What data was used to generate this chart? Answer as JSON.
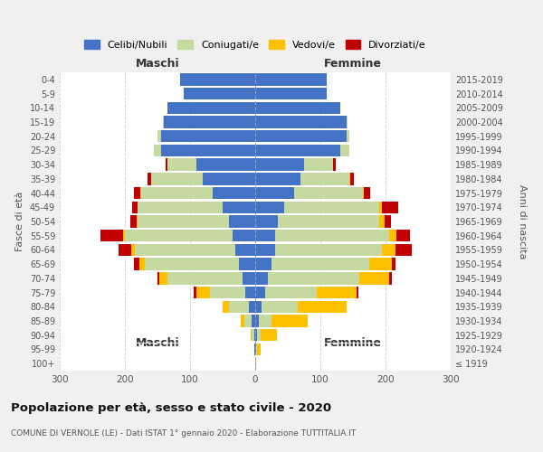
{
  "age_groups": [
    "100+",
    "95-99",
    "90-94",
    "85-89",
    "80-84",
    "75-79",
    "70-74",
    "65-69",
    "60-64",
    "55-59",
    "50-54",
    "45-49",
    "40-44",
    "35-39",
    "30-34",
    "25-29",
    "20-24",
    "15-19",
    "10-14",
    "5-9",
    "0-4"
  ],
  "birth_years": [
    "≤ 1919",
    "1920-1924",
    "1925-1929",
    "1930-1934",
    "1935-1939",
    "1940-1944",
    "1945-1949",
    "1950-1954",
    "1955-1959",
    "1960-1964",
    "1965-1969",
    "1970-1974",
    "1975-1979",
    "1980-1984",
    "1985-1989",
    "1990-1994",
    "1995-1999",
    "2000-2004",
    "2005-2009",
    "2010-2014",
    "2015-2019"
  ],
  "males": {
    "celibe": [
      0,
      1,
      2,
      5,
      10,
      15,
      20,
      25,
      30,
      35,
      40,
      50,
      65,
      80,
      90,
      145,
      145,
      140,
      135,
      110,
      115
    ],
    "coniugato": [
      0,
      1,
      3,
      12,
      30,
      55,
      115,
      145,
      155,
      165,
      140,
      130,
      110,
      80,
      45,
      10,
      5,
      2,
      0,
      0,
      0
    ],
    "vedovo": [
      0,
      0,
      2,
      5,
      10,
      20,
      12,
      8,
      5,
      3,
      2,
      1,
      1,
      0,
      0,
      0,
      0,
      0,
      0,
      0,
      0
    ],
    "divorziato": [
      0,
      0,
      0,
      0,
      0,
      5,
      3,
      8,
      20,
      35,
      10,
      8,
      10,
      5,
      2,
      1,
      0,
      0,
      0,
      0,
      0
    ]
  },
  "females": {
    "nubile": [
      0,
      1,
      3,
      5,
      10,
      15,
      20,
      25,
      30,
      30,
      35,
      45,
      60,
      70,
      75,
      130,
      140,
      140,
      130,
      110,
      110
    ],
    "coniugata": [
      0,
      2,
      5,
      20,
      55,
      80,
      140,
      150,
      165,
      175,
      155,
      145,
      105,
      75,
      45,
      15,
      5,
      2,
      0,
      0,
      0
    ],
    "vedova": [
      1,
      5,
      25,
      55,
      75,
      60,
      45,
      35,
      20,
      12,
      8,
      5,
      2,
      1,
      0,
      0,
      0,
      0,
      0,
      0,
      0
    ],
    "divorziata": [
      0,
      0,
      0,
      0,
      0,
      3,
      5,
      5,
      25,
      20,
      10,
      25,
      10,
      5,
      3,
      0,
      0,
      0,
      0,
      0,
      0
    ]
  },
  "colors": {
    "celibe": "#4472c4",
    "coniugato": "#c5d9a0",
    "vedovo": "#ffc000",
    "divorziato": "#c00000"
  },
  "xlim": [
    -300,
    300
  ],
  "xticks": [
    -300,
    -200,
    -100,
    0,
    100,
    200,
    300
  ],
  "xticklabels": [
    "300",
    "200",
    "100",
    "0",
    "100",
    "200",
    "300"
  ],
  "title": "Popolazione per età, sesso e stato civile - 2020",
  "subtitle": "COMUNE DI VERNOLE (LE) - Dati ISTAT 1° gennaio 2020 - Elaborazione TUTTITALIA.IT",
  "ylabel": "Fasce di età",
  "ylabel_right": "Anni di nascita",
  "legend_labels": [
    "Celibi/Nubili",
    "Coniugati/e",
    "Vedovi/e",
    "Divorziati/e"
  ],
  "maschi_label": "Maschi",
  "femmine_label": "Femmine",
  "bg_color": "#f0f0f0",
  "plot_bg_color": "#ffffff",
  "bar_height": 0.85,
  "grid_color": "#cccccc"
}
